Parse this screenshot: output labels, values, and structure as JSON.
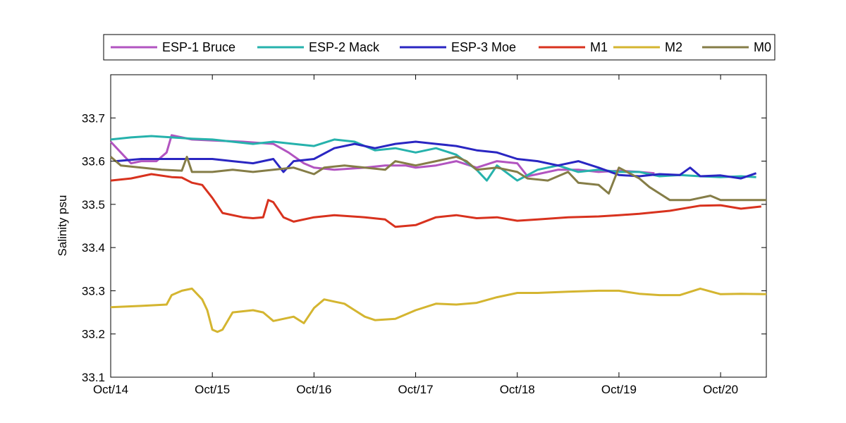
{
  "chart_data": {
    "type": "line",
    "title": "",
    "xlabel": "",
    "ylabel": "Salinity psu",
    "xlim": [
      0,
      6.45
    ],
    "ylim": [
      33.1,
      33.8
    ],
    "grid": false,
    "legend_position": "top",
    "x_ticks": [
      {
        "value": 0,
        "label": "Oct/14"
      },
      {
        "value": 1,
        "label": "Oct/15"
      },
      {
        "value": 2,
        "label": "Oct/16"
      },
      {
        "value": 3,
        "label": "Oct/17"
      },
      {
        "value": 4,
        "label": "Oct/18"
      },
      {
        "value": 5,
        "label": "Oct/19"
      },
      {
        "value": 6,
        "label": "Oct/20"
      }
    ],
    "y_ticks": [
      33.1,
      33.2,
      33.3,
      33.4,
      33.5,
      33.6,
      33.7
    ],
    "series": [
      {
        "name": "ESP-1 Bruce",
        "color": "#b254c0",
        "points": [
          [
            0,
            33.645
          ],
          [
            0.1,
            33.62
          ],
          [
            0.2,
            33.595
          ],
          [
            0.3,
            33.6
          ],
          [
            0.45,
            33.6
          ],
          [
            0.55,
            33.62
          ],
          [
            0.6,
            33.66
          ],
          [
            0.7,
            33.655
          ],
          [
            0.8,
            33.65
          ],
          [
            1.0,
            33.648
          ],
          [
            1.3,
            33.645
          ],
          [
            1.6,
            33.64
          ],
          [
            1.75,
            33.62
          ],
          [
            1.9,
            33.595
          ],
          [
            2.0,
            33.585
          ],
          [
            2.2,
            33.58
          ],
          [
            2.5,
            33.585
          ],
          [
            2.7,
            33.59
          ],
          [
            2.9,
            33.59
          ],
          [
            3.0,
            33.585
          ],
          [
            3.2,
            33.59
          ],
          [
            3.4,
            33.6
          ],
          [
            3.6,
            33.585
          ],
          [
            3.8,
            33.6
          ],
          [
            4.0,
            33.595
          ],
          [
            4.1,
            33.565
          ],
          [
            4.2,
            33.57
          ],
          [
            4.4,
            33.58
          ],
          [
            4.6,
            33.58
          ],
          [
            4.8,
            33.575
          ],
          [
            5.0,
            33.578
          ],
          [
            5.2,
            33.575
          ],
          [
            5.35,
            33.572
          ]
        ]
      },
      {
        "name": "ESP-2 Mack",
        "color": "#26b2ac",
        "points": [
          [
            0,
            33.65
          ],
          [
            0.2,
            33.655
          ],
          [
            0.4,
            33.658
          ],
          [
            0.6,
            33.655
          ],
          [
            0.8,
            33.652
          ],
          [
            1.0,
            33.65
          ],
          [
            1.2,
            33.645
          ],
          [
            1.4,
            33.64
          ],
          [
            1.6,
            33.645
          ],
          [
            1.8,
            33.64
          ],
          [
            2.0,
            33.635
          ],
          [
            2.2,
            33.65
          ],
          [
            2.4,
            33.645
          ],
          [
            2.6,
            33.625
          ],
          [
            2.8,
            33.63
          ],
          [
            3.0,
            33.62
          ],
          [
            3.2,
            33.63
          ],
          [
            3.4,
            33.615
          ],
          [
            3.6,
            33.58
          ],
          [
            3.7,
            33.555
          ],
          [
            3.8,
            33.59
          ],
          [
            4.0,
            33.555
          ],
          [
            4.2,
            33.58
          ],
          [
            4.4,
            33.59
          ],
          [
            4.6,
            33.575
          ],
          [
            4.8,
            33.58
          ],
          [
            5.0,
            33.575
          ],
          [
            5.2,
            33.575
          ],
          [
            5.4,
            33.565
          ],
          [
            5.6,
            33.568
          ],
          [
            5.8,
            33.565
          ],
          [
            6.0,
            33.563
          ],
          [
            6.2,
            33.565
          ],
          [
            6.35,
            33.563
          ]
        ]
      },
      {
        "name": "ESP-3 Moe",
        "color": "#2a26c2",
        "points": [
          [
            0.05,
            33.6
          ],
          [
            0.3,
            33.605
          ],
          [
            0.6,
            33.605
          ],
          [
            0.8,
            33.605
          ],
          [
            1.0,
            33.605
          ],
          [
            1.2,
            33.6
          ],
          [
            1.4,
            33.595
          ],
          [
            1.6,
            33.605
          ],
          [
            1.7,
            33.575
          ],
          [
            1.8,
            33.6
          ],
          [
            2.0,
            33.605
          ],
          [
            2.2,
            33.63
          ],
          [
            2.4,
            33.64
          ],
          [
            2.6,
            33.63
          ],
          [
            2.8,
            33.64
          ],
          [
            3.0,
            33.645
          ],
          [
            3.2,
            33.64
          ],
          [
            3.4,
            33.635
          ],
          [
            3.6,
            33.625
          ],
          [
            3.8,
            33.62
          ],
          [
            4.0,
            33.605
          ],
          [
            4.2,
            33.6
          ],
          [
            4.4,
            33.59
          ],
          [
            4.6,
            33.6
          ],
          [
            4.8,
            33.585
          ],
          [
            5.0,
            33.568
          ],
          [
            5.2,
            33.565
          ],
          [
            5.4,
            33.57
          ],
          [
            5.6,
            33.568
          ],
          [
            5.7,
            33.585
          ],
          [
            5.8,
            33.565
          ],
          [
            6.0,
            33.567
          ],
          [
            6.2,
            33.56
          ],
          [
            6.35,
            33.572
          ]
        ]
      },
      {
        "name": "M1",
        "color": "#d8321e",
        "points": [
          [
            0,
            33.555
          ],
          [
            0.2,
            33.56
          ],
          [
            0.4,
            33.57
          ],
          [
            0.6,
            33.563
          ],
          [
            0.7,
            33.562
          ],
          [
            0.8,
            33.55
          ],
          [
            0.9,
            33.545
          ],
          [
            1.0,
            33.515
          ],
          [
            1.1,
            33.48
          ],
          [
            1.3,
            33.47
          ],
          [
            1.4,
            33.468
          ],
          [
            1.5,
            33.47
          ],
          [
            1.55,
            33.51
          ],
          [
            1.6,
            33.505
          ],
          [
            1.7,
            33.47
          ],
          [
            1.8,
            33.46
          ],
          [
            2.0,
            33.47
          ],
          [
            2.2,
            33.475
          ],
          [
            2.5,
            33.47
          ],
          [
            2.7,
            33.465
          ],
          [
            2.8,
            33.448
          ],
          [
            3.0,
            33.452
          ],
          [
            3.2,
            33.47
          ],
          [
            3.4,
            33.475
          ],
          [
            3.6,
            33.468
          ],
          [
            3.8,
            33.47
          ],
          [
            4.0,
            33.462
          ],
          [
            4.2,
            33.465
          ],
          [
            4.5,
            33.47
          ],
          [
            4.8,
            33.472
          ],
          [
            5.0,
            33.475
          ],
          [
            5.2,
            33.478
          ],
          [
            5.5,
            33.485
          ],
          [
            5.8,
            33.497
          ],
          [
            6.0,
            33.498
          ],
          [
            6.2,
            33.49
          ],
          [
            6.4,
            33.495
          ]
        ]
      },
      {
        "name": "M2",
        "color": "#d4b530",
        "points": [
          [
            0,
            33.262
          ],
          [
            0.3,
            33.265
          ],
          [
            0.55,
            33.268
          ],
          [
            0.6,
            33.29
          ],
          [
            0.7,
            33.3
          ],
          [
            0.8,
            33.305
          ],
          [
            0.9,
            33.28
          ],
          [
            0.95,
            33.255
          ],
          [
            1.0,
            33.21
          ],
          [
            1.05,
            33.205
          ],
          [
            1.1,
            33.21
          ],
          [
            1.2,
            33.25
          ],
          [
            1.4,
            33.255
          ],
          [
            1.5,
            33.25
          ],
          [
            1.6,
            33.23
          ],
          [
            1.8,
            33.24
          ],
          [
            1.9,
            33.225
          ],
          [
            2.0,
            33.26
          ],
          [
            2.1,
            33.28
          ],
          [
            2.2,
            33.275
          ],
          [
            2.3,
            33.27
          ],
          [
            2.4,
            33.255
          ],
          [
            2.5,
            33.24
          ],
          [
            2.6,
            33.232
          ],
          [
            2.8,
            33.235
          ],
          [
            3.0,
            33.255
          ],
          [
            3.2,
            33.27
          ],
          [
            3.4,
            33.268
          ],
          [
            3.6,
            33.272
          ],
          [
            3.8,
            33.285
          ],
          [
            4.0,
            33.295
          ],
          [
            4.2,
            33.295
          ],
          [
            4.5,
            33.298
          ],
          [
            4.8,
            33.3
          ],
          [
            5.0,
            33.3
          ],
          [
            5.2,
            33.293
          ],
          [
            5.4,
            33.29
          ],
          [
            5.6,
            33.29
          ],
          [
            5.8,
            33.305
          ],
          [
            6.0,
            33.292
          ],
          [
            6.2,
            33.293
          ],
          [
            6.45,
            33.292
          ]
        ]
      },
      {
        "name": "M0",
        "color": "#857d47",
        "points": [
          [
            0,
            33.61
          ],
          [
            0.1,
            33.59
          ],
          [
            0.3,
            33.585
          ],
          [
            0.5,
            33.58
          ],
          [
            0.7,
            33.578
          ],
          [
            0.75,
            33.61
          ],
          [
            0.8,
            33.575
          ],
          [
            1.0,
            33.575
          ],
          [
            1.2,
            33.58
          ],
          [
            1.4,
            33.575
          ],
          [
            1.6,
            33.58
          ],
          [
            1.8,
            33.585
          ],
          [
            2.0,
            33.57
          ],
          [
            2.1,
            33.585
          ],
          [
            2.3,
            33.59
          ],
          [
            2.5,
            33.585
          ],
          [
            2.7,
            33.58
          ],
          [
            2.8,
            33.6
          ],
          [
            3.0,
            33.59
          ],
          [
            3.2,
            33.6
          ],
          [
            3.4,
            33.61
          ],
          [
            3.5,
            33.6
          ],
          [
            3.6,
            33.58
          ],
          [
            3.8,
            33.585
          ],
          [
            4.0,
            33.575
          ],
          [
            4.1,
            33.56
          ],
          [
            4.3,
            33.555
          ],
          [
            4.5,
            33.575
          ],
          [
            4.6,
            33.55
          ],
          [
            4.8,
            33.545
          ],
          [
            4.9,
            33.525
          ],
          [
            5.0,
            33.585
          ],
          [
            5.2,
            33.56
          ],
          [
            5.3,
            33.54
          ],
          [
            5.4,
            33.525
          ],
          [
            5.5,
            33.51
          ],
          [
            5.7,
            33.51
          ],
          [
            5.9,
            33.52
          ],
          [
            6.0,
            33.51
          ],
          [
            6.2,
            33.51
          ],
          [
            6.45,
            33.51
          ]
        ]
      }
    ]
  }
}
